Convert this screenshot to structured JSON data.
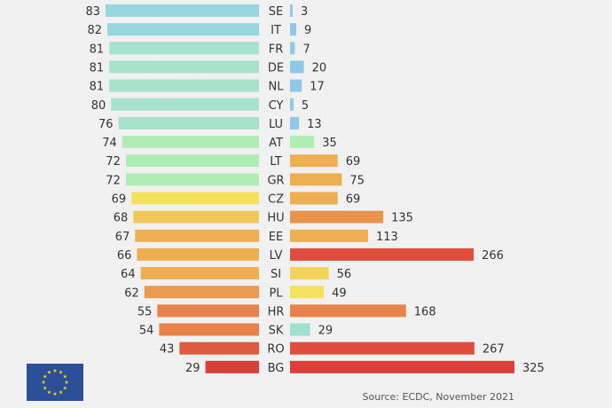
{
  "chart_data": {
    "type": "bar",
    "orientation": "horizontal-diverging",
    "categories": [
      "SE",
      "IT",
      "FR",
      "DE",
      "NL",
      "CY",
      "LU",
      "AT",
      "LT",
      "GR",
      "CZ",
      "HU",
      "EE",
      "LV",
      "SI",
      "PL",
      "HR",
      "SK",
      "RO",
      "BG"
    ],
    "series": [
      {
        "values": [
          83,
          82,
          81,
          81,
          81,
          80,
          76,
          74,
          72,
          72,
          69,
          68,
          67,
          66,
          64,
          62,
          55,
          54,
          43,
          29
        ]
      },
      {
        "values": [
          3,
          9,
          7,
          20,
          17,
          5,
          13,
          35,
          69,
          75,
          69,
          135,
          113,
          266,
          56,
          49,
          168,
          29,
          267,
          325
        ]
      }
    ],
    "left_colors": [
      "#97d7dd",
      "#97d7dd",
      "#a6e2cc",
      "#a6e2cc",
      "#a6e2cc",
      "#a6e2cc",
      "#a6e2cc",
      "#b0edb5",
      "#b0edb5",
      "#b0edb5",
      "#f3e25e",
      "#f0c85a",
      "#eeae52",
      "#eeae52",
      "#eeae52",
      "#eb9a50",
      "#e8814a",
      "#e8814a",
      "#df5a3e",
      "#d9403a"
    ],
    "right_colors": [
      "#8fc9e6",
      "#8fc9e6",
      "#8fc9e6",
      "#8fc9e6",
      "#8fc9e6",
      "#8fc9e6",
      "#8fc9e6",
      "#b0edb5",
      "#eeae52",
      "#eeae52",
      "#eeae52",
      "#e8944a",
      "#eeae52",
      "#df4e3c",
      "#f3d35a",
      "#f3e25e",
      "#e8814a",
      "#9fe0d0",
      "#df4e3c",
      "#dc3f3a"
    ]
  },
  "source_text": "Source: ECDC, November 2021",
  "flag": {
    "color": "#2c4f97",
    "star_color": "#f5d023"
  }
}
